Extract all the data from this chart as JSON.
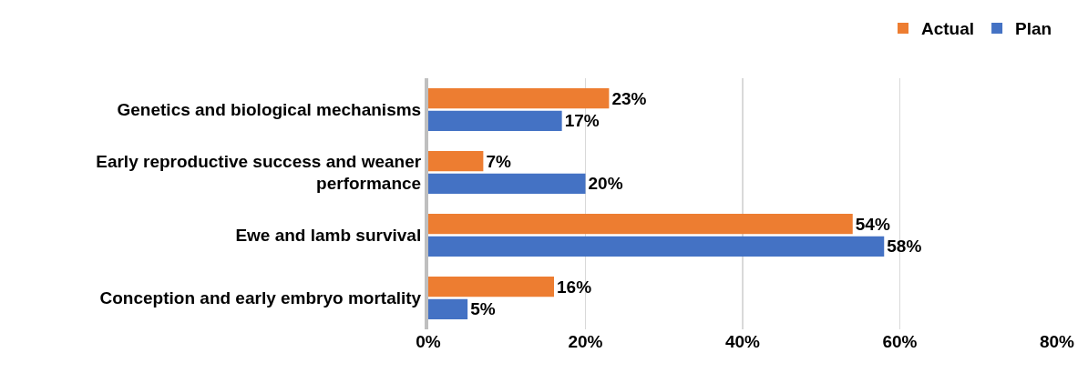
{
  "chart_data": {
    "type": "bar",
    "orientation": "horizontal",
    "categories": [
      "Genetics and biological mechanisms",
      "Early reproductive success and weaner performance",
      "Ewe and lamb survival",
      "Conception and early embryo mortality"
    ],
    "series": [
      {
        "name": "Actual",
        "color": "#ed7d31",
        "values": [
          23,
          7,
          54,
          16
        ],
        "value_labels": [
          "23%",
          "7%",
          "54%",
          "16%"
        ]
      },
      {
        "name": "Plan",
        "color": "#4472c4",
        "values": [
          17,
          20,
          58,
          5
        ],
        "value_labels": [
          "17%",
          "20%",
          "58%",
          "5%"
        ]
      }
    ],
    "xlim": [
      0,
      80
    ],
    "xticks": [
      {
        "value": 0,
        "label": "0%"
      },
      {
        "value": 20,
        "label": "20%"
      },
      {
        "value": 40,
        "label": "40%"
      },
      {
        "value": 60,
        "label": "60%"
      },
      {
        "value": 80,
        "label": "80%"
      }
    ],
    "grid": "x",
    "legend": "top right"
  }
}
